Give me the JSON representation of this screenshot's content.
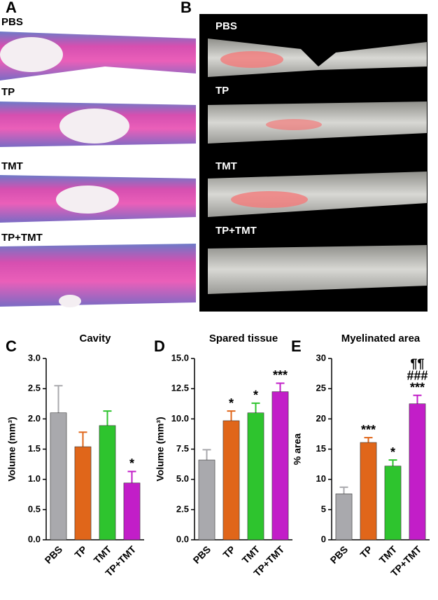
{
  "images": [
    {
      "panel": "A",
      "labels": [
        "PBS",
        "TP",
        "TMT",
        "TP+TMT"
      ]
    },
    {
      "panel": "B",
      "labels": [
        "PBS",
        "TP",
        "TMT",
        "TP+TMT"
      ]
    }
  ],
  "chart_data": [
    {
      "type": "bar",
      "panel": "C",
      "title": "Cavity",
      "y_label": "Volume (mm³)",
      "categories": [
        "PBS",
        "TP",
        "TMT",
        "TP+TMT"
      ],
      "values": [
        2.1,
        1.54,
        1.89,
        0.94
      ],
      "errors": [
        0.45,
        0.24,
        0.24,
        0.19
      ],
      "colors": [
        "#a9a9ad",
        "#e0661a",
        "#2ec42e",
        "#c21ec8"
      ],
      "annotations": [
        null,
        null,
        null,
        [
          "*"
        ]
      ],
      "ylim": [
        0,
        3
      ],
      "yticks": [
        {
          "value": 0,
          "label": "0.0"
        },
        0.5,
        {
          "value": 1,
          "label": "1.0"
        },
        1.5,
        {
          "value": 2,
          "label": "2.0"
        },
        2.5,
        {
          "value": 3,
          "label": "3.0"
        }
      ]
    },
    {
      "type": "bar",
      "panel": "D",
      "title": "Spared tissue",
      "y_label": "Volume (mm³)",
      "categories": [
        "PBS",
        "TP",
        "TMT",
        "TP+TMT"
      ],
      "values": [
        6.6,
        9.85,
        10.5,
        12.25
      ],
      "errors": [
        0.85,
        0.8,
        0.8,
        0.7
      ],
      "colors": [
        "#a9a9ad",
        "#e0661a",
        "#2ec42e",
        "#c21ec8"
      ],
      "annotations": [
        null,
        [
          "*"
        ],
        [
          "*"
        ],
        [
          "***"
        ]
      ],
      "ylim": [
        0,
        15
      ],
      "yticks": [
        {
          "value": 0,
          "label": "0.0"
        },
        2.5,
        {
          "value": 5,
          "label": "5.0"
        },
        7.5,
        {
          "value": 10,
          "label": "10.0"
        },
        12.5,
        {
          "value": 15,
          "label": "15.0"
        }
      ]
    },
    {
      "type": "bar",
      "panel": "E",
      "title": "Myelinated area",
      "y_label": "% area",
      "categories": [
        "PBS",
        "TP",
        "TMT",
        "TP+TMT"
      ],
      "values": [
        7.6,
        16.1,
        12.2,
        22.5
      ],
      "errors": [
        1.1,
        0.8,
        1.0,
        1.4
      ],
      "colors": [
        "#a9a9ad",
        "#e0661a",
        "#2ec42e",
        "#c21ec8"
      ],
      "annotations": [
        null,
        [
          "***"
        ],
        [
          "*"
        ],
        [
          "***",
          "###",
          "¶¶"
        ]
      ],
      "ylim": [
        0,
        30
      ],
      "yticks": [
        0,
        5,
        10,
        15,
        20,
        25,
        30
      ]
    }
  ]
}
